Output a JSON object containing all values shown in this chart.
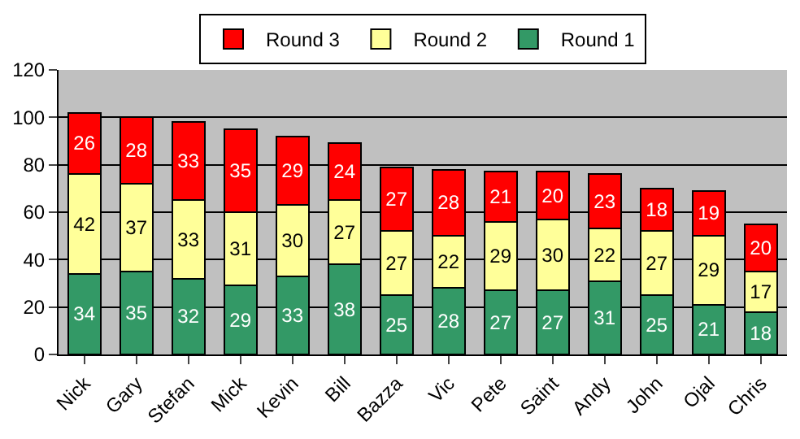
{
  "chart_data": {
    "type": "bar",
    "stacked": true,
    "categories": [
      "Nick",
      "Gary",
      "Stefan",
      "Mick",
      "Kevin",
      "Bill",
      "Bazza",
      "Vic",
      "Pete",
      "Saint",
      "Andy",
      "John",
      "Ojal",
      "Chris"
    ],
    "series": [
      {
        "name": "Round 1",
        "color": "#339966",
        "values": [
          34,
          35,
          32,
          29,
          33,
          38,
          25,
          28,
          27,
          27,
          31,
          25,
          21,
          18
        ]
      },
      {
        "name": "Round 2",
        "color": "#ffff99",
        "values": [
          42,
          37,
          33,
          31,
          30,
          27,
          27,
          22,
          29,
          30,
          22,
          27,
          29,
          17
        ]
      },
      {
        "name": "Round 3",
        "color": "#ff0000",
        "values": [
          26,
          28,
          33,
          35,
          29,
          24,
          27,
          28,
          21,
          20,
          23,
          18,
          19,
          20
        ]
      }
    ],
    "ylim": [
      0,
      120
    ],
    "yticks": [
      0,
      20,
      40,
      60,
      80,
      100,
      120
    ],
    "grid": "y",
    "legend": "top",
    "data_labels": true
  }
}
